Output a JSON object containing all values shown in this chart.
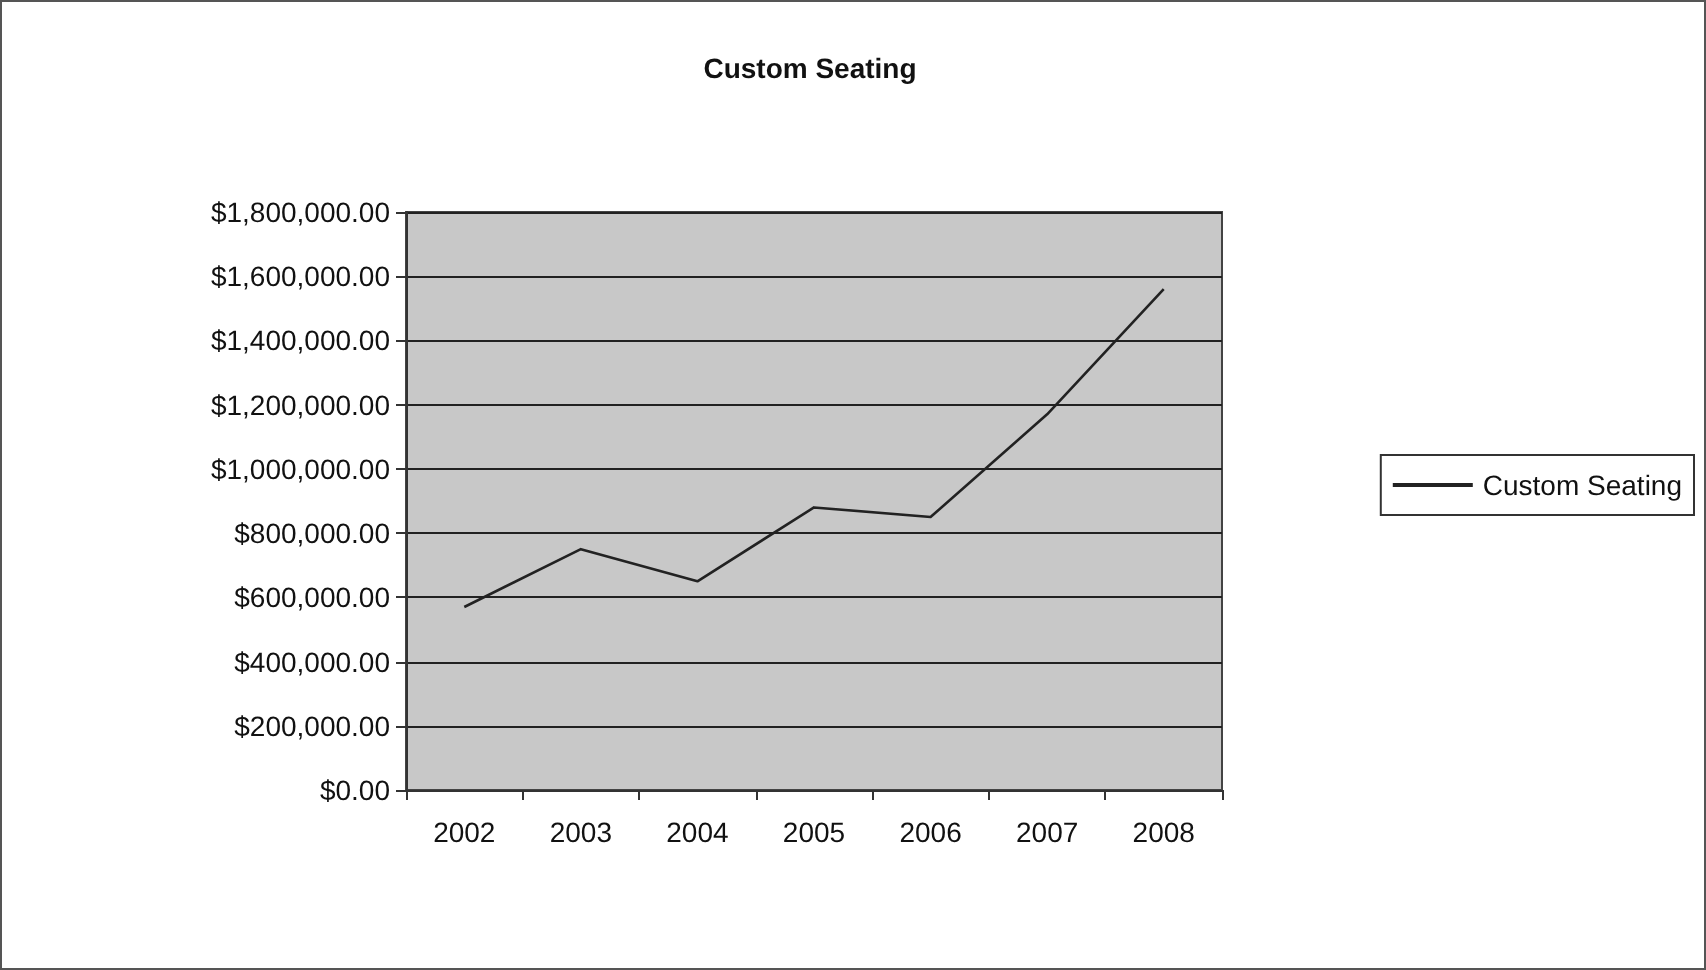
{
  "chart_data": {
    "type": "line",
    "title": "Custom Seating",
    "categories": [
      "2002",
      "2003",
      "2004",
      "2005",
      "2006",
      "2007",
      "2008"
    ],
    "series": [
      {
        "name": "Custom Seating",
        "color": "#222222",
        "values": [
          570000,
          750000,
          650000,
          880000,
          850000,
          1170000,
          1560000
        ]
      }
    ],
    "ylim": [
      0,
      1800000
    ],
    "yticks": [
      {
        "value": 0,
        "label": "$0.00"
      },
      {
        "value": 200000,
        "label": "$200,000.00"
      },
      {
        "value": 400000,
        "label": "$400,000.00"
      },
      {
        "value": 600000,
        "label": "$600,000.00"
      },
      {
        "value": 800000,
        "label": "$800,000.00"
      },
      {
        "value": 1000000,
        "label": "$1,000,000.00"
      },
      {
        "value": 1200000,
        "label": "$1,200,000.00"
      },
      {
        "value": 1400000,
        "label": "$1,400,000.00"
      },
      {
        "value": 1600000,
        "label": "$1,600,000.00"
      },
      {
        "value": 1800000,
        "label": "$1,800,000.00"
      }
    ],
    "grid": "y",
    "legend": "right",
    "marker": "none",
    "line_style": "solid"
  }
}
